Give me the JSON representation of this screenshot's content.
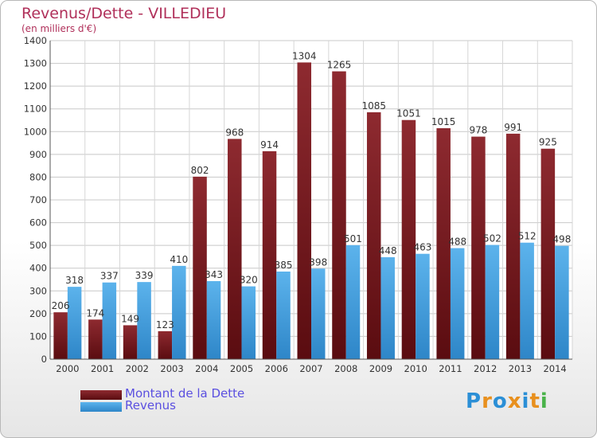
{
  "title": "Revenus/Dette - VILLEDIEU",
  "subtitle": "(en milliers d'€)",
  "chart_data": {
    "type": "bar",
    "categories": [
      "2000",
      "2001",
      "2002",
      "2003",
      "2004",
      "2005",
      "2006",
      "2007",
      "2008",
      "2009",
      "2010",
      "2011",
      "2012",
      "2013",
      "2014"
    ],
    "series": [
      {
        "name": "Montant de la Dette",
        "color": "#7a1c20",
        "values": [
          206,
          174,
          149,
          123,
          802,
          968,
          914,
          1304,
          1265,
          1085,
          1051,
          1015,
          978,
          991,
          925
        ]
      },
      {
        "name": "Revenus",
        "color": "#4aa3df",
        "values": [
          318,
          337,
          339,
          410,
          343,
          320,
          385,
          398,
          501,
          448,
          463,
          488,
          502,
          512,
          498
        ]
      }
    ],
    "yticks": [
      "0",
      "100",
      "200",
      "300",
      "400",
      "500",
      "600",
      "700",
      "800",
      "900",
      "1000",
      "1100",
      "1200",
      "1300",
      "1400"
    ],
    "ylim": [
      0,
      1400
    ],
    "grid": true,
    "legend_position": "bottom-left"
  },
  "legend": [
    {
      "label": "Montant de la Dette"
    },
    {
      "label": "Revenus"
    }
  ],
  "logo": {
    "letters": [
      "P",
      "r",
      "o",
      "x",
      "i",
      "t",
      "i"
    ],
    "colors": [
      "#2b8fd6",
      "#e8901e",
      "#2b8fd6",
      "#e8901e",
      "#2b8fd6",
      "#e8901e",
      "#4ab34a"
    ]
  }
}
